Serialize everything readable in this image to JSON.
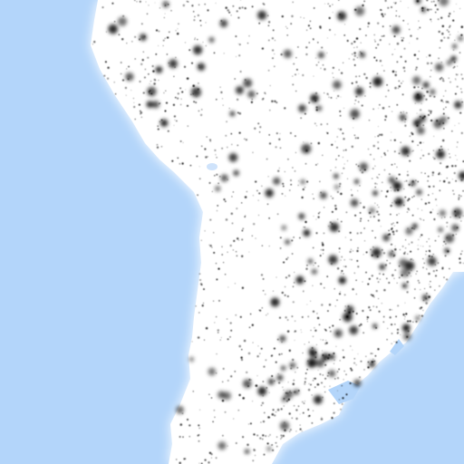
{
  "map": {
    "style": "population-density-dots",
    "region": "South America",
    "colors": {
      "ocean": "#b3d5fa",
      "land": "#ffffff",
      "coast_glow": "#ffffff",
      "dots": "#000000",
      "lakes": "#cfe3fb"
    },
    "visible_text": []
  }
}
